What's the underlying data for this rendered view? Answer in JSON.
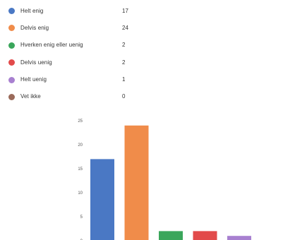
{
  "legend": [
    {
      "label": "Helt enig",
      "count": "17",
      "color": "#4a78c4"
    },
    {
      "label": "Delvis enig",
      "count": "24",
      "color": "#f08c4a"
    },
    {
      "label": "Hverken enig eller uenig",
      "count": "2",
      "color": "#3aa65b"
    },
    {
      "label": "Delvis uenig",
      "count": "2",
      "color": "#e24a4a"
    },
    {
      "label": "Helt uenig",
      "count": "1",
      "color": "#a880d0"
    },
    {
      "label": "Vet ikke",
      "count": "0",
      "color": "#9a6a5a"
    }
  ],
  "chart_data": {
    "type": "bar",
    "categories": [
      "Helt enig",
      "Delvis enig",
      "Hverken enig eller uenig",
      "Delvis uenig",
      "Helt uenig",
      "Vet ikke"
    ],
    "values": [
      17,
      24,
      2,
      2,
      1,
      0
    ],
    "colors": [
      "#4a78c4",
      "#f08c4a",
      "#3aa65b",
      "#e24a4a",
      "#a880d0",
      "#9a6a5a"
    ],
    "yticks": [
      "0",
      "5",
      "10",
      "15",
      "20",
      "25"
    ],
    "ylim": [
      0,
      25
    ],
    "grid": false
  }
}
